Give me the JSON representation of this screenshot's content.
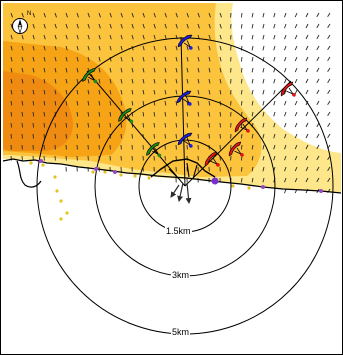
{
  "map": {
    "range_rings": [
      {
        "label": "1.5km"
      },
      {
        "label": "3km"
      },
      {
        "label": "5km"
      }
    ],
    "compass": {
      "icon": "compass-north-icon",
      "glyph": "N"
    },
    "colors": {
      "heat_light": "#fde78a",
      "heat_mid": "#fcc33d",
      "heat_strong": "#f6a316",
      "heat_hot": "#ef8b10",
      "wind_vector": "#2b2b2b",
      "coastline": "#000000",
      "range_ring": "#000000",
      "trajectory_blue": "#1d1de0",
      "trajectory_green": "#1b8a1b",
      "trajectory_red": "#e01515",
      "site_marker": "#7a2fd0",
      "shore_marker": "#9a46c8",
      "sand_dot": "#e6c222"
    },
    "trajectories": [
      {
        "name": "blue",
        "icon": "blue-glider-icon"
      },
      {
        "name": "green",
        "icon": "green-glider-icon"
      },
      {
        "name": "red",
        "icon": "red-glider-icon"
      }
    ]
  }
}
